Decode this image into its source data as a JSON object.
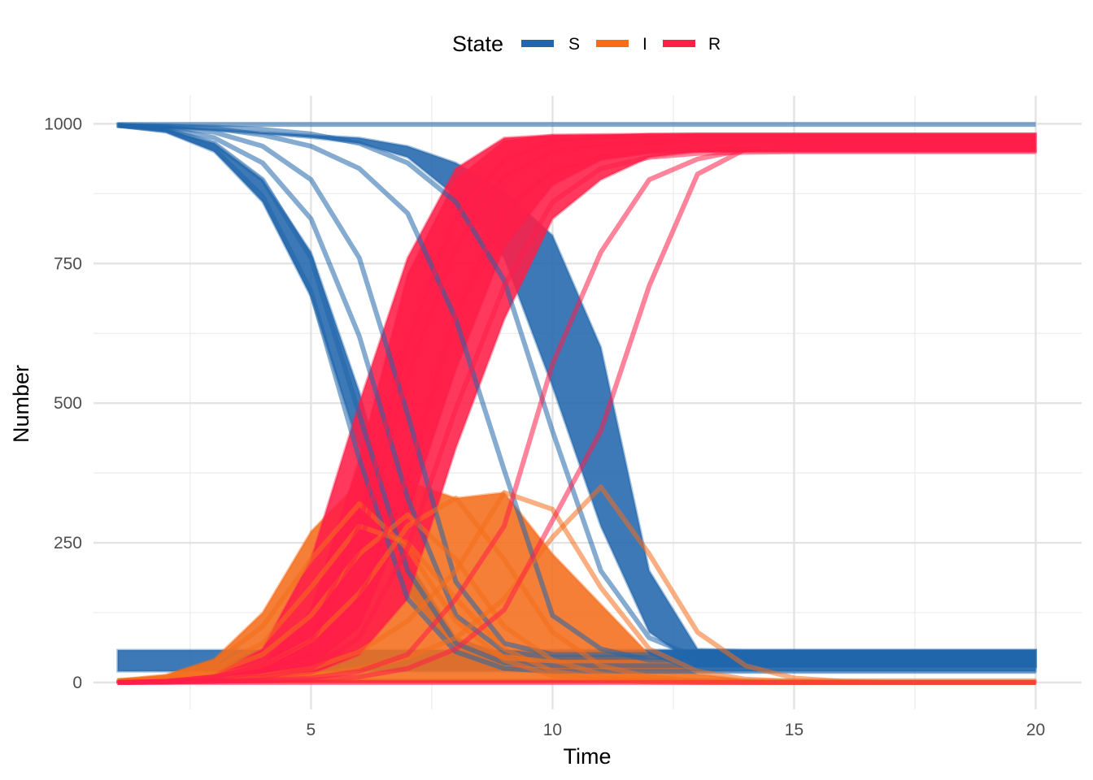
{
  "chart_data": {
    "type": "line",
    "xlabel": "Time",
    "ylabel": "Number",
    "xlim": [
      0.5,
      20.95
    ],
    "ylim": [
      -48,
      1050
    ],
    "x_ticks": [
      5,
      10,
      15,
      20
    ],
    "x_minor": [
      2.5,
      7.5,
      12.5,
      17.5
    ],
    "y_ticks": [
      0,
      250,
      500,
      750,
      1000
    ],
    "y_minor": [
      125,
      375,
      625,
      875
    ],
    "grid": true,
    "legend": {
      "title": "State",
      "position": "top",
      "entries": [
        {
          "label": "S",
          "color": "#2166AC"
        },
        {
          "label": "I",
          "color": "#F46D1B"
        },
        {
          "label": "R",
          "color": "#FF1E48"
        }
      ]
    },
    "x": [
      1,
      2,
      3,
      4,
      5,
      6,
      7,
      8,
      9,
      10,
      11,
      12,
      13,
      14,
      15,
      16,
      17,
      18,
      19,
      20
    ],
    "series": [
      {
        "name": "S",
        "color": "#2166AC",
        "values": [
          997,
          990,
          965,
          900,
          760,
          480,
          200,
          70,
          35,
          30,
          30,
          30,
          30,
          30,
          30,
          30,
          30,
          30,
          30,
          30
        ]
      },
      {
        "name": "S",
        "color": "#2166AC",
        "values": [
          997,
          992,
          975,
          930,
          830,
          620,
          330,
          120,
          55,
          45,
          45,
          45,
          45,
          45,
          45,
          45,
          45,
          45,
          45,
          45
        ]
      },
      {
        "name": "S",
        "color": "#2166AC",
        "values": [
          997,
          988,
          955,
          870,
          700,
          400,
          150,
          55,
          25,
          20,
          20,
          20,
          20,
          20,
          20,
          20,
          20,
          20,
          20,
          20
        ]
      },
      {
        "name": "S",
        "color": "#2166AC",
        "values": [
          997,
          994,
          985,
          960,
          900,
          760,
          480,
          180,
          70,
          50,
          50,
          50,
          50,
          50,
          50,
          50,
          50,
          50,
          50,
          50
        ]
      },
      {
        "name": "S",
        "color": "#2166AC",
        "values": [
          997,
          996,
          992,
          980,
          960,
          920,
          840,
          650,
          380,
          120,
          60,
          40,
          40,
          40,
          40,
          40,
          40,
          40,
          40,
          40
        ]
      },
      {
        "name": "S",
        "color": "#2166AC",
        "values": [
          997,
          996,
          994,
          990,
          982,
          965,
          930,
          860,
          720,
          450,
          200,
          80,
          45,
          40,
          40,
          40,
          40,
          40,
          40,
          40
        ]
      },
      {
        "name": "S",
        "color": "#2166AC",
        "values": [
          999,
          999,
          999,
          999,
          999,
          999,
          999,
          999,
          999,
          999,
          999,
          999,
          999,
          999,
          999,
          999,
          999,
          999,
          999,
          999
        ]
      },
      {
        "name": "I",
        "color": "#F46D1B",
        "values": [
          3,
          8,
          25,
          70,
          170,
          280,
          250,
          150,
          60,
          20,
          8,
          3,
          1,
          0,
          0,
          0,
          0,
          0,
          0,
          0
        ]
      },
      {
        "name": "I",
        "color": "#F46D1B",
        "values": [
          3,
          6,
          18,
          50,
          120,
          230,
          300,
          220,
          100,
          40,
          15,
          5,
          2,
          1,
          0,
          0,
          0,
          0,
          0,
          0
        ]
      },
      {
        "name": "I",
        "color": "#F46D1B",
        "values": [
          3,
          10,
          35,
          100,
          220,
          320,
          240,
          110,
          40,
          12,
          4,
          1,
          0,
          0,
          0,
          0,
          0,
          0,
          0,
          0
        ]
      },
      {
        "name": "I",
        "color": "#F46D1B",
        "values": [
          3,
          5,
          12,
          30,
          75,
          160,
          280,
          330,
          220,
          90,
          30,
          10,
          3,
          1,
          0,
          0,
          0,
          0,
          0,
          0
        ]
      },
      {
        "name": "I",
        "color": "#F46D1B",
        "values": [
          3,
          4,
          6,
          12,
          25,
          55,
          110,
          200,
          340,
          310,
          170,
          60,
          20,
          6,
          2,
          0,
          0,
          0,
          0,
          0
        ]
      },
      {
        "name": "I",
        "color": "#F46D1B",
        "values": [
          3,
          4,
          5,
          8,
          14,
          25,
          45,
          80,
          150,
          260,
          350,
          230,
          90,
          30,
          8,
          2,
          0,
          0,
          0,
          0
        ]
      },
      {
        "name": "I",
        "color": "#F46D1B",
        "values": [
          3,
          3,
          3,
          3,
          3,
          3,
          3,
          3,
          3,
          3,
          3,
          3,
          3,
          3,
          3,
          3,
          3,
          3,
          3,
          3
        ]
      },
      {
        "name": "R",
        "color": "#FF1E48",
        "values": [
          0,
          2,
          10,
          30,
          70,
          240,
          550,
          780,
          905,
          950,
          962,
          967,
          968,
          968,
          968,
          968,
          968,
          968,
          968,
          968
        ]
      },
      {
        "name": "R",
        "color": "#FF1E48",
        "values": [
          0,
          2,
          7,
          20,
          50,
          150,
          370,
          660,
          845,
          915,
          940,
          950,
          953,
          955,
          955,
          955,
          955,
          955,
          955,
          955
        ]
      },
      {
        "name": "R",
        "color": "#FF1E48",
        "values": [
          0,
          2,
          10,
          30,
          80,
          280,
          610,
          835,
          935,
          968,
          976,
          979,
          980,
          980,
          980,
          980,
          980,
          980,
          980,
          980
        ]
      },
      {
        "name": "R",
        "color": "#FF1E48",
        "values": [
          0,
          1,
          3,
          10,
          25,
          80,
          240,
          490,
          710,
          860,
          920,
          940,
          947,
          949,
          950,
          950,
          950,
          950,
          950,
          950
        ]
      },
      {
        "name": "R",
        "color": "#FF1E48",
        "values": [
          0,
          1,
          2,
          4,
          8,
          20,
          50,
          150,
          280,
          570,
          770,
          900,
          937,
          954,
          958,
          960,
          960,
          960,
          960,
          960
        ]
      },
      {
        "name": "R",
        "color": "#FF1E48",
        "values": [
          0,
          1,
          2,
          3,
          5,
          10,
          25,
          60,
          130,
          290,
          450,
          710,
          910,
          955,
          960,
          960,
          960,
          960,
          960,
          960
        ]
      },
      {
        "name": "R",
        "color": "#FF1E48",
        "values": [
          0,
          0,
          0,
          0,
          0,
          0,
          0,
          0,
          0,
          0,
          0,
          0,
          0,
          0,
          0,
          0,
          0,
          0,
          0,
          0
        ]
      }
    ],
    "bands": [
      {
        "name": "S",
        "color": "#2166AC",
        "upper": [
          1000,
          990,
          965,
          900,
          770,
          520,
          220,
          80,
          50,
          58,
          58,
          58,
          58,
          58,
          58,
          58,
          58,
          58,
          58,
          58
        ],
        "lower": [
          995,
          985,
          950,
          860,
          690,
          420,
          160,
          60,
          30,
          28,
          28,
          28,
          28,
          28,
          28,
          28,
          28,
          28,
          28,
          28
        ]
      },
      {
        "name": "S",
        "color": "#2166AC",
        "upper": [
          1000,
          995,
          990,
          985,
          980,
          975,
          960,
          930,
          880,
          800,
          600,
          200,
          60,
          58,
          58,
          58,
          58,
          58,
          58,
          58
        ],
        "lower": [
          995,
          993,
          988,
          982,
          975,
          965,
          940,
          870,
          760,
          530,
          280,
          90,
          30,
          28,
          28,
          28,
          28,
          28,
          28,
          28
        ]
      },
      {
        "name": "S",
        "color": "#2166AC",
        "upper": [
          58,
          58,
          58,
          58,
          58,
          58,
          58,
          58,
          58,
          58,
          58,
          58,
          58,
          58,
          58,
          58,
          58,
          58,
          58,
          58
        ],
        "lower": [
          20,
          20,
          20,
          20,
          20,
          20,
          20,
          20,
          20,
          20,
          20,
          20,
          20,
          20,
          20,
          20,
          20,
          20,
          20,
          20
        ]
      },
      {
        "name": "I",
        "color": "#F46D1B",
        "upper": [
          5,
          14,
          42,
          125,
          270,
          360,
          360,
          330,
          340,
          230,
          140,
          50,
          15,
          5,
          1,
          0,
          0,
          0,
          0,
          0
        ],
        "lower": [
          0,
          0,
          0,
          0,
          0,
          0,
          0,
          0,
          0,
          0,
          0,
          0,
          0,
          0,
          0,
          0,
          0,
          0,
          0,
          0
        ]
      },
      {
        "name": "R",
        "color": "#FF1E48",
        "upper": [
          2,
          3,
          12,
          32,
          130,
          400,
          730,
          900,
          970,
          980,
          980,
          981,
          982,
          982,
          982,
          982,
          982,
          982,
          982,
          982
        ],
        "lower": [
          0,
          1,
          2,
          6,
          15,
          50,
          150,
          420,
          650,
          830,
          900,
          940,
          950,
          950,
          950,
          950,
          950,
          950,
          950,
          950
        ]
      },
      {
        "name": "R",
        "color": "#FF1E48",
        "upper": [
          2,
          3,
          14,
          60,
          220,
          500,
          760,
          920,
          975,
          980,
          981,
          982,
          982,
          982,
          982,
          982,
          982,
          982,
          982,
          982
        ],
        "lower": [
          0,
          1,
          3,
          12,
          30,
          100,
          300,
          560,
          780,
          890,
          935,
          948,
          950,
          950,
          950,
          950,
          950,
          950,
          950,
          950
        ]
      },
      {
        "name": "R",
        "color": "#FF1E48",
        "upper": [
          2,
          2,
          3,
          3,
          3,
          3,
          3,
          3,
          3,
          3,
          3,
          3,
          3,
          3,
          3,
          3,
          3,
          3,
          3,
          3
        ],
        "lower": [
          0,
          0,
          0,
          0,
          0,
          0,
          0,
          0,
          0,
          0,
          0,
          0,
          0,
          0,
          0,
          0,
          0,
          0,
          0,
          0
        ]
      }
    ]
  }
}
